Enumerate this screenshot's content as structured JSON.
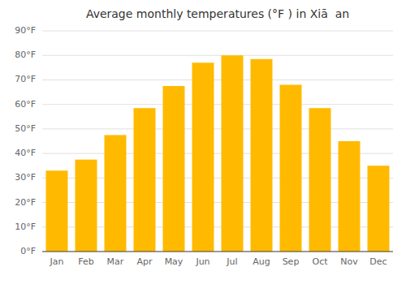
{
  "chart_data": {
    "type": "bar",
    "title": "Average monthly temperatures (°F ) in Xiā  an",
    "categories": [
      "Jan",
      "Feb",
      "Mar",
      "Apr",
      "May",
      "Jun",
      "Jul",
      "Aug",
      "Sep",
      "Oct",
      "Nov",
      "Dec"
    ],
    "values": [
      33,
      37.5,
      47.5,
      58.5,
      67.5,
      77,
      80,
      78.5,
      68,
      58.5,
      45,
      35
    ],
    "color": "#FFBA00",
    "ylim": [
      0,
      90
    ],
    "yticks": [
      {
        "value": 0,
        "label": "0°F"
      },
      {
        "value": 10,
        "label": "10°F"
      },
      {
        "value": 20,
        "label": "20°F"
      },
      {
        "value": 30,
        "label": "30°F"
      },
      {
        "value": 40,
        "label": "40°F"
      },
      {
        "value": 50,
        "label": "50°F"
      },
      {
        "value": 60,
        "label": "60°F"
      },
      {
        "value": 70,
        "label": "70°F"
      },
      {
        "value": 80,
        "label": "80°F"
      },
      {
        "value": 90,
        "label": "90°F"
      }
    ],
    "grid": true
  }
}
